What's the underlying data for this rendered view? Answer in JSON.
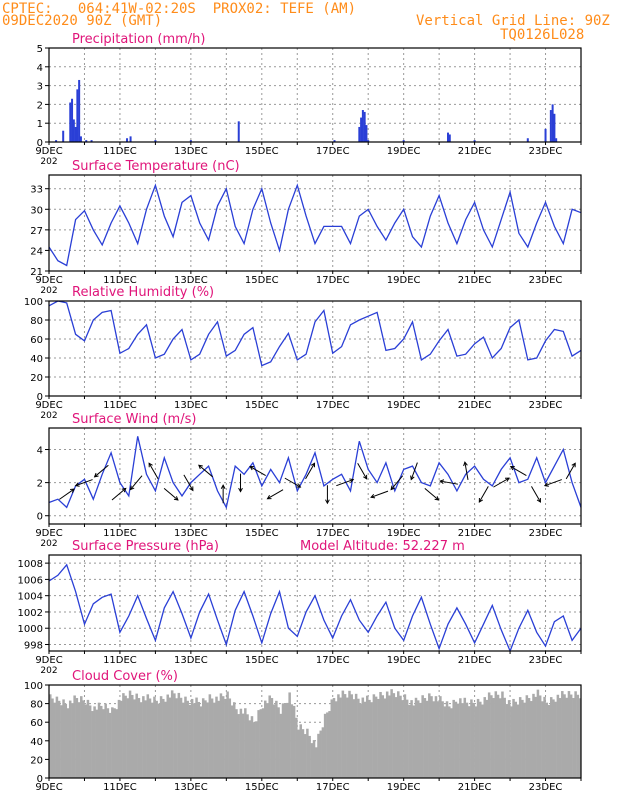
{
  "header": {
    "line1": "CPTEC:   064:41W-02:20S  PROX02: TEFE (AM)",
    "line2": "09DEC2020 90Z (GMT)",
    "right1": "Vertical Grid Line: 90Z",
    "right2": "TQ0126L028",
    "color": "#ff8c1a"
  },
  "colors": {
    "title": "#e0157a",
    "line": "#2a3fd6",
    "cloud": "#aaaaaa",
    "grid": "#999999"
  },
  "x_axis": {
    "ticks": [
      "9DEC",
      "11DEC",
      "13DEC",
      "15DEC",
      "17DEC",
      "19DEC",
      "21DEC",
      "23DEC"
    ],
    "year_fragment": "202"
  },
  "panels": {
    "precip": {
      "title": "Precipitation (mm/h)",
      "yticks": [
        "0",
        "1",
        "2",
        "3",
        "4",
        "5"
      ]
    },
    "temp": {
      "title": "Surface Temperature (nC)",
      "yticks": [
        "21",
        "24",
        "27",
        "30",
        "33"
      ]
    },
    "rh": {
      "title": "Relative Humidity (%)",
      "yticks": [
        "0",
        "20",
        "40",
        "60",
        "80",
        "100"
      ]
    },
    "wind": {
      "title": "Surface Wind (m/s)",
      "yticks": [
        "0",
        "2",
        "4"
      ]
    },
    "pres": {
      "title": "Surface Pressure (hPa)",
      "extra": "Model Altitude: 52.227 m",
      "yticks": [
        "998",
        "1000",
        "1002",
        "1004",
        "1006",
        "1008"
      ]
    },
    "cloud": {
      "title": "Cloud Cover (%)",
      "yticks": [
        "0",
        "20",
        "40",
        "60",
        "80",
        "100"
      ]
    }
  },
  "chart_data": [
    {
      "type": "bar",
      "title": "Precipitation (mm/h)",
      "ylim": [
        0,
        5
      ],
      "x_unit": "days since 9DEC",
      "x": [
        0.2,
        0.4,
        0.6,
        0.65,
        0.7,
        0.75,
        0.8,
        0.85,
        0.9,
        1.05,
        1.2,
        2.2,
        2.3,
        3.0,
        4.0,
        5.35,
        8.05,
        8.75,
        8.8,
        8.85,
        8.9,
        8.95,
        9.0,
        10.0,
        11.25,
        11.3,
        12.0,
        13.5,
        14.0,
        14.15,
        14.2,
        14.25,
        14.3
      ],
      "values": [
        0.1,
        0.6,
        2.1,
        2.3,
        1.2,
        0.8,
        2.8,
        3.3,
        0.3,
        0.1,
        0.1,
        0.2,
        0.3,
        0.1,
        0.1,
        1.1,
        0.1,
        0.8,
        1.3,
        1.7,
        1.6,
        0.9,
        0.1,
        0.1,
        0.5,
        0.4,
        0.1,
        0.2,
        0.7,
        1.7,
        2.0,
        1.5,
        0.2
      ]
    },
    {
      "type": "line",
      "title": "Surface Temperature (nC)",
      "ylim": [
        21,
        35
      ],
      "x_unit": "days since 9DEC",
      "x": [
        0,
        0.25,
        0.5,
        0.75,
        1,
        1.25,
        1.5,
        1.75,
        2,
        2.25,
        2.5,
        2.75,
        3,
        3.25,
        3.5,
        3.75,
        4,
        4.25,
        4.5,
        4.75,
        5,
        5.25,
        5.5,
        5.75,
        6,
        6.25,
        6.5,
        6.75,
        7,
        7.25,
        7.5,
        7.75,
        8,
        8.25,
        8.5,
        8.75,
        9,
        9.25,
        9.5,
        9.75,
        10,
        10.25,
        10.5,
        10.75,
        11,
        11.25,
        11.5,
        11.75,
        12,
        12.25,
        12.5,
        12.75,
        13,
        13.25,
        13.5,
        13.75,
        14,
        14.25,
        14.5,
        14.75,
        15
      ],
      "values": [
        24.5,
        22.5,
        21.8,
        28.5,
        29.8,
        27,
        24.8,
        28,
        30.5,
        28,
        25,
        30,
        33.5,
        29,
        26,
        31,
        32,
        28,
        25.5,
        30.5,
        33,
        27.5,
        25,
        30,
        33,
        28,
        24,
        30,
        33.5,
        29,
        25,
        27.5,
        27.5,
        27.5,
        25,
        29,
        30,
        27.5,
        25.5,
        28,
        30,
        26,
        24.5,
        29,
        32,
        28,
        25,
        28.5,
        31,
        27,
        24.5,
        28.5,
        32.5,
        26.5,
        24.5,
        28,
        31,
        27.5,
        25,
        30,
        29.5
      ]
    },
    {
      "type": "line",
      "title": "Relative Humidity (%)",
      "ylim": [
        0,
        100
      ],
      "x_unit": "days since 9DEC",
      "x": [
        0,
        0.25,
        0.5,
        0.75,
        1,
        1.25,
        1.5,
        1.75,
        2,
        2.25,
        2.5,
        2.75,
        3,
        3.25,
        3.5,
        3.75,
        4,
        4.25,
        4.5,
        4.75,
        5,
        5.25,
        5.5,
        5.75,
        6,
        6.25,
        6.5,
        6.75,
        7,
        7.25,
        7.5,
        7.75,
        8,
        8.25,
        8.5,
        8.75,
        9,
        9.25,
        9.5,
        9.75,
        10,
        10.25,
        10.5,
        10.75,
        11,
        11.25,
        11.5,
        11.75,
        12,
        12.25,
        12.5,
        12.75,
        13,
        13.25,
        13.5,
        13.75,
        14,
        14.25,
        14.5,
        14.75,
        15
      ],
      "values": [
        95,
        100,
        98,
        65,
        58,
        80,
        88,
        90,
        45,
        50,
        65,
        75,
        40,
        44,
        60,
        70,
        38,
        44,
        65,
        78,
        42,
        48,
        65,
        72,
        32,
        36,
        52,
        66,
        38,
        44,
        78,
        90,
        45,
        52,
        75,
        80,
        84,
        88,
        48,
        50,
        60,
        78,
        38,
        44,
        58,
        70,
        42,
        44,
        55,
        62,
        40,
        50,
        72,
        80,
        38,
        40,
        58,
        70,
        68,
        42,
        48
      ]
    },
    {
      "type": "line",
      "title": "Surface Wind (m/s)",
      "ylim": [
        0,
        5
      ],
      "x_unit": "days since 9DEC",
      "x": [
        0,
        0.25,
        0.5,
        0.75,
        1,
        1.25,
        1.5,
        1.75,
        2,
        2.25,
        2.5,
        2.75,
        3,
        3.25,
        3.5,
        3.75,
        4,
        4.25,
        4.5,
        4.75,
        5,
        5.25,
        5.5,
        5.75,
        6,
        6.25,
        6.5,
        6.75,
        7,
        7.25,
        7.5,
        7.75,
        8,
        8.25,
        8.5,
        8.75,
        9,
        9.25,
        9.5,
        9.75,
        10,
        10.25,
        10.5,
        10.75,
        11,
        11.25,
        11.5,
        11.75,
        12,
        12.25,
        12.5,
        12.75,
        13,
        13.25,
        13.5,
        13.75,
        14,
        14.25,
        14.5,
        14.75,
        15
      ],
      "values": [
        0.8,
        1.0,
        0.5,
        1.8,
        2.2,
        1.0,
        2.5,
        3.8,
        2.0,
        1.2,
        4.8,
        2.5,
        1.5,
        3.5,
        2.0,
        1.2,
        2.0,
        2.5,
        3.0,
        1.5,
        0.5,
        3.0,
        2.5,
        3.2,
        1.8,
        2.8,
        2.0,
        3.5,
        1.5,
        2.5,
        3.8,
        1.8,
        2.2,
        2.5,
        1.5,
        4.5,
        2.8,
        2.0,
        3.2,
        1.5,
        2.8,
        3.0,
        2.0,
        1.8,
        3.2,
        2.5,
        1.5,
        2.5,
        3.0,
        2.2,
        1.8,
        2.8,
        3.5,
        2.0,
        2.2,
        3.5,
        2.0,
        3.0,
        4.0,
        2.0,
        0.5
      ]
    },
    {
      "type": "line",
      "title": "Surface Pressure (hPa)",
      "ylim": [
        997.2,
        1009
      ],
      "x_unit": "days since 9DEC",
      "x": [
        0,
        0.25,
        0.5,
        0.75,
        1,
        1.25,
        1.5,
        1.75,
        2,
        2.25,
        2.5,
        2.75,
        3,
        3.25,
        3.5,
        3.75,
        4,
        4.25,
        4.5,
        4.75,
        5,
        5.25,
        5.5,
        5.75,
        6,
        6.25,
        6.5,
        6.75,
        7,
        7.25,
        7.5,
        7.75,
        8,
        8.25,
        8.5,
        8.75,
        9,
        9.25,
        9.5,
        9.75,
        10,
        10.25,
        10.5,
        10.75,
        11,
        11.25,
        11.5,
        11.75,
        12,
        12.25,
        12.5,
        12.75,
        13,
        13.25,
        13.5,
        13.75,
        14,
        14.25,
        14.5,
        14.75,
        15
      ],
      "values": [
        1005.8,
        1006.5,
        1007.8,
        1004.5,
        1000.5,
        1003,
        1003.8,
        1004.2,
        999.5,
        1001.5,
        1004,
        1001.2,
        998.5,
        1002.5,
        1004.5,
        1001.8,
        998.8,
        1002,
        1004.2,
        1001,
        998,
        1002.2,
        1004.5,
        1001.5,
        998.2,
        1001.8,
        1004.5,
        1000,
        999,
        1002,
        1004,
        1001,
        998.8,
        1001.5,
        1003.5,
        1001,
        999.5,
        1001.5,
        1003.2,
        1000,
        998.5,
        1001.5,
        1003.8,
        1000.5,
        997.5,
        1000.5,
        1002.5,
        1000.5,
        998.2,
        1000.5,
        1002.8,
        999.8,
        997.2,
        1000,
        1002.2,
        999.5,
        997.8,
        1000.8,
        1001.5,
        998.5,
        1000
      ]
    },
    {
      "type": "bar",
      "title": "Cloud Cover (%)",
      "ylim": [
        0,
        100
      ],
      "x_unit": "days since 9DEC",
      "x": [
        0,
        0.25,
        0.5,
        0.75,
        1,
        1.25,
        1.5,
        1.75,
        2,
        2.25,
        2.5,
        2.75,
        3,
        3.25,
        3.5,
        3.75,
        4,
        4.25,
        4.5,
        4.75,
        5,
        5.25,
        5.5,
        5.75,
        6,
        6.25,
        6.5,
        6.75,
        7,
        7.25,
        7.5,
        7.75,
        8,
        8.25,
        8.5,
        8.75,
        9,
        9.25,
        9.5,
        9.75,
        10,
        10.25,
        10.5,
        10.75,
        11,
        11.25,
        11.5,
        11.75,
        12,
        12.25,
        12.5,
        12.75,
        13,
        13.25,
        13.5,
        13.75,
        14,
        14.25,
        14.5,
        14.75,
        15
      ],
      "values": [
        90,
        88,
        85,
        90,
        88,
        80,
        82,
        78,
        90,
        95,
        92,
        90,
        88,
        92,
        95,
        90,
        88,
        85,
        92,
        90,
        94,
        80,
        75,
        65,
        85,
        90,
        78,
        95,
        60,
        55,
        40,
        70,
        92,
        94,
        95,
        90,
        88,
        94,
        96,
        95,
        92,
        85,
        90,
        94,
        88,
        82,
        90,
        85,
        86,
        90,
        94,
        95,
        84,
        88,
        92,
        95,
        86,
        92,
        94,
        95,
        96
      ]
    }
  ]
}
